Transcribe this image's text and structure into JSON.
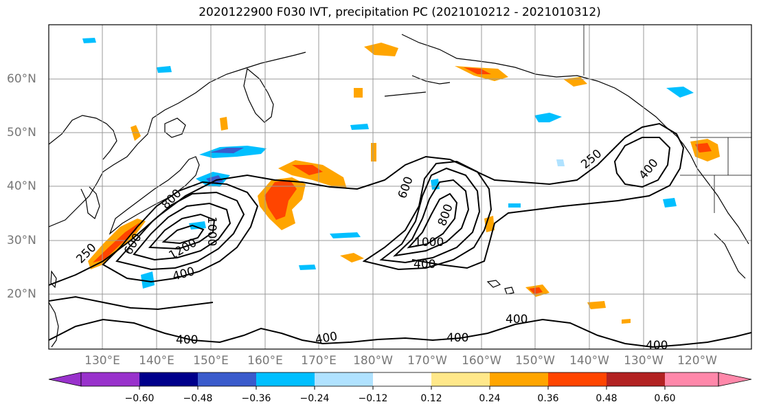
{
  "title": "2020122900 F030 IVT, precipitation PC (2021010212 - 2021010312)",
  "lat_labels": [
    "60°N",
    "50°N",
    "40°N",
    "30°N",
    "20°N"
  ],
  "lon_labels": [
    "130°E",
    "140°E",
    "150°E",
    "160°E",
    "170°E",
    "180°W",
    "170°W",
    "160°W",
    "150°W",
    "140°W",
    "130°W",
    "120°W"
  ],
  "contour_labels": [
    {
      "text": "250",
      "where": "west"
    },
    {
      "text": "600",
      "where": "japan"
    },
    {
      "text": "800",
      "where": "japan"
    },
    {
      "text": "1000",
      "where": "japan"
    },
    {
      "text": "1200",
      "where": "japan"
    },
    {
      "text": "400",
      "where": "japan"
    },
    {
      "text": "600",
      "where": "central"
    },
    {
      "text": "800",
      "where": "central"
    },
    {
      "text": "1000",
      "where": "central"
    },
    {
      "text": "400",
      "where": "central"
    },
    {
      "text": "250",
      "where": "east"
    },
    {
      "text": "400",
      "where": "east"
    },
    {
      "text": "400",
      "where": "south"
    },
    {
      "text": "400",
      "where": "south"
    },
    {
      "text": "400",
      "where": "south"
    },
    {
      "text": "400",
      "where": "south"
    },
    {
      "text": "400",
      "where": "south"
    }
  ],
  "colorbar": {
    "ticks": [
      "−0.60",
      "−0.48",
      "−0.36",
      "−0.24",
      "−0.12",
      "0.12",
      "0.24",
      "0.36",
      "0.48",
      "0.60"
    ],
    "colors": [
      "#9932cc",
      "#00008b",
      "#3a5bcc",
      "#00bfff",
      "#b0e2ff",
      "#ffffff",
      "#ffe88a",
      "#ffa500",
      "#ff4500",
      "#b22222",
      "#ff88aa"
    ]
  }
}
